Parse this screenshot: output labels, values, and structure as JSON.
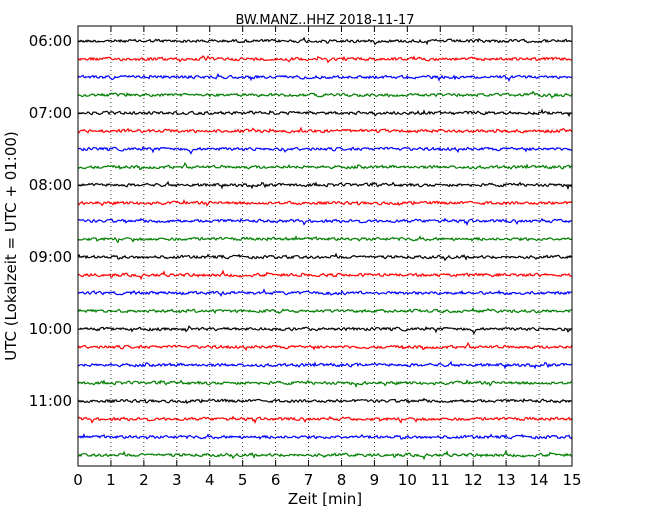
{
  "chart_data": {
    "type": "line",
    "title": "BW.MANZ..HHZ 2018-11-17",
    "xlabel": "Zeit  [min]",
    "ylabel": "UTC (Lokalzeit = UTC + 01:00)",
    "xlim": [
      0,
      15
    ],
    "x_ticks": [
      "0",
      "1",
      "2",
      "3",
      "4",
      "5",
      "6",
      "7",
      "8",
      "9",
      "10",
      "11",
      "12",
      "13",
      "14",
      "15"
    ],
    "y_ticks": [
      "06:00",
      "07:00",
      "08:00",
      "09:00",
      "10:00",
      "11:00"
    ],
    "grid": "vertical dotted",
    "colors": [
      "#000000",
      "#ff0000",
      "#0000ff",
      "#007f00"
    ],
    "trace_minutes": 15,
    "trace_start_times": [
      "06:00",
      "06:15",
      "06:30",
      "06:45",
      "07:00",
      "07:15",
      "07:30",
      "07:45",
      "08:00",
      "08:15",
      "08:30",
      "08:45",
      "09:00",
      "09:15",
      "09:30",
      "09:45",
      "10:00",
      "10:15",
      "10:30",
      "10:45",
      "11:00",
      "11:15",
      "11:30",
      "11:45"
    ]
  }
}
